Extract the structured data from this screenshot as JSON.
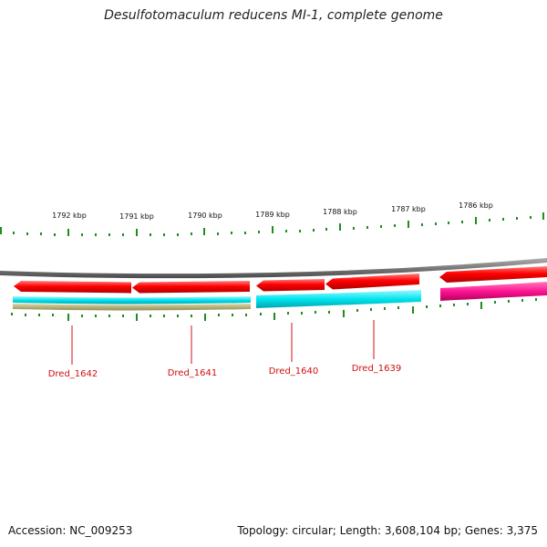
{
  "title": "Desulfotomaculum reducens MI-1, complete genome",
  "scale_labels": [
    "1792 kbp",
    "1791 kbp",
    "1790 kbp",
    "1789 kbp",
    "1788 kbp",
    "1787 kbp",
    "1786 kbp"
  ],
  "genes": [
    {
      "label": "Dred_1642"
    },
    {
      "label": "Dred_1641"
    },
    {
      "label": "Dred_1640"
    },
    {
      "label": "Dred_1639"
    }
  ],
  "colors": {
    "backbone": "#7a7a7a",
    "cds": "#ff0000",
    "feature_cyan": "#00e5ee",
    "feature_olive": "#b3ad6e",
    "feature_magenta": "#ff1493",
    "ticks": "#1f8c1f",
    "gene_label": "#d01010"
  },
  "footer": {
    "accession": "Accession: NC_009253",
    "summary": "Topology: circular; Length: 3,608,104 bp; Genes: 3,375"
  }
}
